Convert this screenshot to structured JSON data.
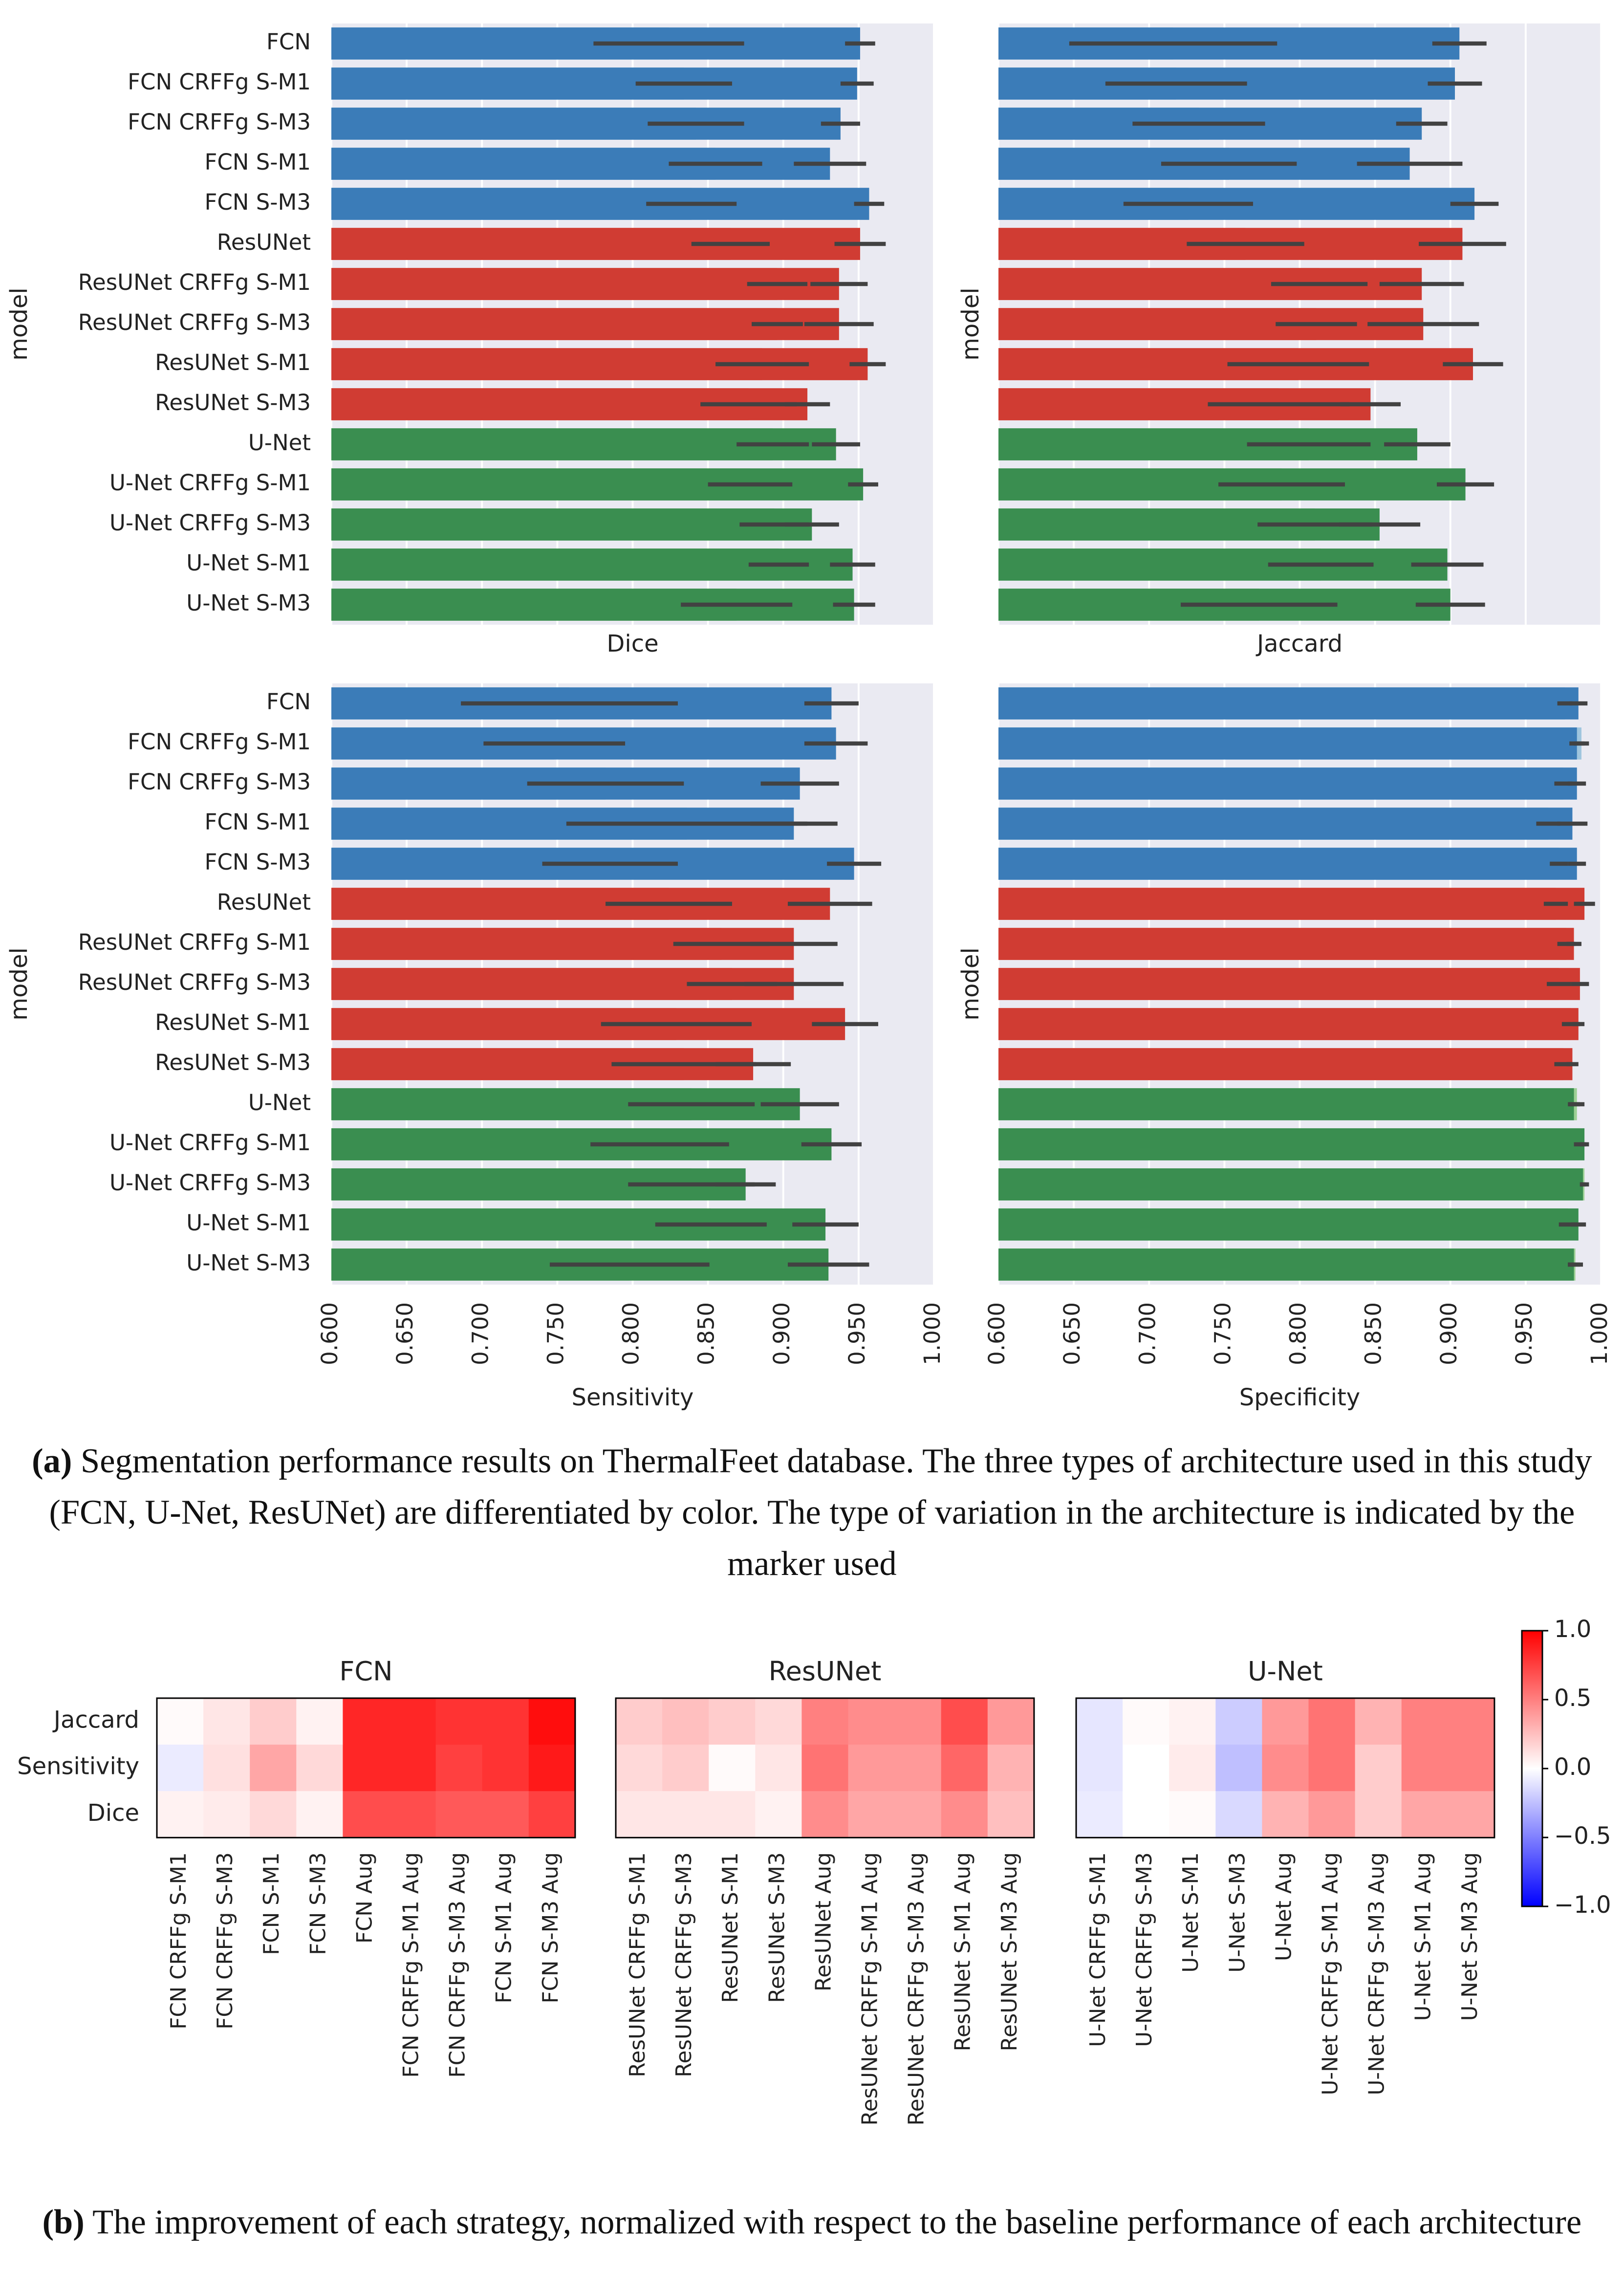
{
  "chart_data": [
    {
      "type": "bar",
      "orientation": "horizontal",
      "ylabel": "model",
      "xlabel": "Dice",
      "xlim": [
        0.6,
        1.0
      ],
      "grid": true,
      "categories": [
        "FCN",
        "FCN CRFFg S-M1",
        "FCN CRFFg S-M3",
        "FCN S-M1",
        "FCN S-M3",
        "ResUNet",
        "ResUNet CRFFg S-M1",
        "ResUNet CRFFg S-M3",
        "ResUNet S-M1",
        "ResUNet S-M3",
        "U-Net",
        "U-Net CRFFg S-M1",
        "U-Net CRFFg S-M3",
        "U-Net S-M1",
        "U-Net S-M3"
      ],
      "series": [
        {
          "colors": [
            "#9fc5de",
            "#9fc5de",
            "#9fc5de",
            "#9fc5de",
            "#9fc5de",
            "#ee967b",
            "#ee967b",
            "#ee967b",
            "#ee967b",
            "#ee967b",
            "#9dd095",
            "#9dd095",
            "#9dd095",
            "#9dd095",
            "#9dd095"
          ],
          "values": [
            0.824,
            0.834,
            0.842,
            0.855,
            0.839,
            0.865,
            0.896,
            0.896,
            0.886,
            0.877,
            0.893,
            0.878,
            0.894,
            0.897,
            0.869
          ],
          "errors": [
            0.05,
            0.032,
            0.032,
            0.031,
            0.03,
            0.026,
            0.02,
            0.017,
            0.031,
            0.032,
            0.024,
            0.028,
            0.023,
            0.02,
            0.037
          ]
        },
        {
          "colors": [
            "#3b7cb8",
            "#3b7cb8",
            "#3b7cb8",
            "#3b7cb8",
            "#3b7cb8",
            "#d03c33",
            "#d03c33",
            "#d03c33",
            "#d03c33",
            "#d03c33",
            "#3a8e50",
            "#3a8e50",
            "#3a8e50",
            "#3a8e50",
            "#3a8e50"
          ],
          "values": [
            0.951,
            0.949,
            0.938,
            0.931,
            0.957,
            0.951,
            0.937,
            0.937,
            0.956,
            0.916,
            0.935,
            0.953,
            0.919,
            0.946,
            0.947
          ],
          "errors": [
            0.01,
            0.011,
            0.013,
            0.024,
            0.01,
            0.017,
            0.019,
            0.023,
            0.012,
            0.015,
            0.016,
            0.01,
            0.018,
            0.015,
            0.014
          ]
        }
      ]
    },
    {
      "type": "bar",
      "orientation": "horizontal",
      "ylabel": "model",
      "xlabel": "Jaccard",
      "xlim": [
        0.6,
        1.0
      ],
      "grid": true,
      "series": [
        {
          "colors": [
            "#9fc5de",
            "#9fc5de",
            "#9fc5de",
            "#9fc5de",
            "#9fc5de",
            "#ee967b",
            "#ee967b",
            "#ee967b",
            "#ee967b",
            "#ee967b",
            "#9dd095",
            "#9dd095",
            "#9dd095",
            "#9dd095",
            "#9dd095"
          ],
          "values": [
            0.716,
            0.718,
            0.733,
            0.753,
            0.726,
            0.764,
            0.813,
            0.811,
            0.799,
            0.786,
            0.806,
            0.788,
            0.81,
            0.814,
            0.773
          ],
          "errors": [
            0.069,
            0.047,
            0.044,
            0.045,
            0.043,
            0.039,
            0.032,
            0.027,
            0.047,
            0.047,
            0.041,
            0.042,
            0.038,
            0.035,
            0.052
          ]
        },
        {
          "colors": [
            "#3b7cb8",
            "#3b7cb8",
            "#3b7cb8",
            "#3b7cb8",
            "#3b7cb8",
            "#d03c33",
            "#d03c33",
            "#d03c33",
            "#d03c33",
            "#d03c33",
            "#3a8e50",
            "#3a8e50",
            "#3a8e50",
            "#3a8e50",
            "#3a8e50"
          ],
          "values": [
            0.906,
            0.903,
            0.881,
            0.873,
            0.916,
            0.908,
            0.881,
            0.882,
            0.915,
            0.847,
            0.878,
            0.91,
            0.853,
            0.898,
            0.9
          ],
          "errors": [
            0.018,
            0.018,
            0.017,
            0.035,
            0.016,
            0.029,
            0.028,
            0.037,
            0.02,
            0.02,
            0.022,
            0.019,
            0.027,
            0.024,
            0.023
          ]
        }
      ]
    },
    {
      "type": "bar",
      "orientation": "horizontal",
      "ylabel": "model",
      "xlabel": "Sensitivity",
      "xlim": [
        0.6,
        1.0
      ],
      "grid": true,
      "xticks": [
        {
          "value": 0.6,
          "label": "0.600"
        },
        {
          "value": 0.65,
          "label": "0.650"
        },
        {
          "value": 0.7,
          "label": "0.700"
        },
        {
          "value": 0.75,
          "label": "0.750"
        },
        {
          "value": 0.8,
          "label": "0.800"
        },
        {
          "value": 0.85,
          "label": "0.850"
        },
        {
          "value": 0.9,
          "label": "0.900"
        },
        {
          "value": 0.95,
          "label": "0.950"
        },
        {
          "value": 1.0,
          "label": "1.000"
        }
      ],
      "categories": [
        "FCN",
        "FCN CRFFg S-M1",
        "FCN CRFFg S-M3",
        "FCN S-M1",
        "FCN S-M3",
        "ResUNet",
        "ResUNet CRFFg S-M1",
        "ResUNet CRFFg S-M3",
        "ResUNet S-M1",
        "ResUNet S-M3",
        "U-Net",
        "U-Net CRFFg S-M1",
        "U-Net CRFFg S-M3",
        "U-Net S-M1",
        "U-Net S-M3"
      ],
      "series": [
        {
          "colors": [
            "#9fc5de",
            "#9fc5de",
            "#9fc5de",
            "#9fc5de",
            "#9fc5de",
            "#ee967b",
            "#ee967b",
            "#ee967b",
            "#ee967b",
            "#ee967b",
            "#9dd095",
            "#9dd095",
            "#9dd095",
            "#9dd095",
            "#9dd095"
          ],
          "values": [
            0.758,
            0.748,
            0.782,
            0.836,
            0.785,
            0.824,
            0.859,
            0.866,
            0.829,
            0.834,
            0.839,
            0.818,
            0.839,
            0.852,
            0.798
          ],
          "errors": [
            0.072,
            0.047,
            0.052,
            0.08,
            0.045,
            0.042,
            0.032,
            0.03,
            0.05,
            0.048,
            0.042,
            0.046,
            0.042,
            0.037,
            0.053
          ]
        },
        {
          "colors": [
            "#3b7cb8",
            "#3b7cb8",
            "#3b7cb8",
            "#3b7cb8",
            "#3b7cb8",
            "#d03c33",
            "#d03c33",
            "#d03c33",
            "#d03c33",
            "#d03c33",
            "#3a8e50",
            "#3a8e50",
            "#3a8e50",
            "#3a8e50",
            "#3a8e50"
          ],
          "values": [
            0.932,
            0.935,
            0.911,
            0.907,
            0.947,
            0.931,
            0.907,
            0.907,
            0.941,
            0.88,
            0.911,
            0.932,
            0.875,
            0.928,
            0.93
          ],
          "errors": [
            0.018,
            0.021,
            0.026,
            0.029,
            0.018,
            0.028,
            0.029,
            0.033,
            0.022,
            0.025,
            0.026,
            0.02,
            0.02,
            0.022,
            0.027
          ]
        }
      ]
    },
    {
      "type": "bar",
      "orientation": "horizontal",
      "ylabel": "model",
      "xlabel": "Specificity",
      "xlim": [
        0.6,
        1.0
      ],
      "grid": true,
      "xticks": [
        {
          "value": 0.6,
          "label": "0.600"
        },
        {
          "value": 0.65,
          "label": "0.650"
        },
        {
          "value": 0.7,
          "label": "0.700"
        },
        {
          "value": 0.75,
          "label": "0.750"
        },
        {
          "value": 0.8,
          "label": "0.800"
        },
        {
          "value": 0.85,
          "label": "0.850"
        },
        {
          "value": 0.9,
          "label": "0.900"
        },
        {
          "value": 0.95,
          "label": "0.950"
        },
        {
          "value": 1.0,
          "label": "1.000"
        }
      ],
      "series": [
        {
          "colors": [
            "#9fc5de",
            "#9fc5de",
            "#9fc5de",
            "#9fc5de",
            "#9fc5de",
            "#ee967b",
            "#ee967b",
            "#ee967b",
            "#ee967b",
            "#ee967b",
            "#9dd095",
            "#9dd095",
            "#9dd095",
            "#9dd095",
            "#9dd095"
          ],
          "values": [
            0.976,
            0.987,
            0.975,
            0.965,
            0.972,
            0.97,
            0.977,
            0.972,
            0.98,
            0.975,
            0.984,
            0.986,
            0.989,
            0.978,
            0.983
          ],
          "errors": [
            0.005,
            0.005,
            0.006,
            0.008,
            0.006,
            0.008,
            0.006,
            0.008,
            0.006,
            0.006,
            0.005,
            0.004,
            0.003,
            0.006,
            0.005
          ]
        },
        {
          "colors": [
            "#3b7cb8",
            "#3b7cb8",
            "#3b7cb8",
            "#3b7cb8",
            "#3b7cb8",
            "#d03c33",
            "#d03c33",
            "#d03c33",
            "#d03c33",
            "#d03c33",
            "#3a8e50",
            "#3a8e50",
            "#3a8e50",
            "#3a8e50",
            "#3a8e50"
          ],
          "values": [
            0.985,
            0.984,
            0.984,
            0.981,
            0.984,
            0.989,
            0.982,
            0.986,
            0.985,
            0.981,
            0.982,
            0.989,
            0.988,
            0.985,
            0.982
          ],
          "errors": [
            0.006,
            0.005,
            0.006,
            0.01,
            0.006,
            0.007,
            0.005,
            0.006,
            0.004,
            0.004,
            0.004,
            0.003,
            0.002,
            0.005,
            0.004
          ]
        }
      ]
    },
    {
      "type": "heatmap",
      "title": "FCN",
      "rows": [
        "Jaccard",
        "Sensitivity",
        "Dice"
      ],
      "columns": [
        "FCN CRFFg S-M1",
        "FCN CRFFg S-M3",
        "FCN S-M1",
        "FCN S-M3",
        "FCN Aug",
        "FCN CRFFg S-M1 Aug",
        "FCN CRFFg S-M3 Aug",
        "FCN S-M1 Aug",
        "FCN S-M3 Aug"
      ],
      "values": [
        [
          0.02,
          0.1,
          0.2,
          0.05,
          0.85,
          0.85,
          0.8,
          0.8,
          0.95
        ],
        [
          -0.08,
          0.12,
          0.35,
          0.15,
          0.85,
          0.85,
          0.75,
          0.8,
          0.9
        ],
        [
          0.05,
          0.08,
          0.15,
          0.05,
          0.7,
          0.7,
          0.65,
          0.65,
          0.75
        ]
      ]
    },
    {
      "type": "heatmap",
      "title": "ResUNet",
      "columns": [
        "ResUNet CRFFg S-M1",
        "ResUNet CRFFg S-M3",
        "ResUNet S-M1",
        "ResUNet S-M3",
        "ResUNet Aug",
        "ResUNet CRFFg S-M1 Aug",
        "ResUNet CRFFg S-M3 Aug",
        "ResUNet S-M1 Aug",
        "ResUNet S-M3 Aug"
      ],
      "values": [
        [
          0.2,
          0.25,
          0.2,
          0.15,
          0.5,
          0.45,
          0.45,
          0.7,
          0.4
        ],
        [
          0.15,
          0.2,
          0.02,
          0.1,
          0.55,
          0.4,
          0.4,
          0.6,
          0.3
        ],
        [
          0.1,
          0.1,
          0.1,
          0.05,
          0.45,
          0.35,
          0.35,
          0.45,
          0.25
        ]
      ]
    },
    {
      "type": "heatmap",
      "title": "U-Net",
      "columns": [
        "U-Net CRFFg S-M1",
        "U-Net CRFFg S-M3",
        "U-Net S-M1",
        "U-Net S-M3",
        "U-Net Aug",
        "U-Net CRFFg S-M1 Aug",
        "U-Net CRFFg S-M3 Aug",
        "U-Net S-M1 Aug",
        "U-Net S-M3 Aug"
      ],
      "values": [
        [
          -0.1,
          0.02,
          0.05,
          -0.2,
          0.4,
          0.55,
          0.3,
          0.5,
          0.5
        ],
        [
          -0.1,
          0.0,
          0.08,
          -0.25,
          0.45,
          0.55,
          0.2,
          0.5,
          0.5
        ],
        [
          -0.08,
          0.0,
          0.02,
          -0.15,
          0.3,
          0.4,
          0.2,
          0.35,
          0.35
        ]
      ],
      "clim": [
        -1,
        1
      ],
      "cticks": [
        {
          "value": 1,
          "label": "1.0"
        },
        {
          "value": 0.5,
          "label": "0.5"
        },
        {
          "value": 0,
          "label": "0.0"
        },
        {
          "value": -0.5,
          "label": "−0.5"
        },
        {
          "value": -1,
          "label": "−1.0"
        }
      ]
    }
  ],
  "captions": {
    "a": {
      "label": "(a)",
      "text": "Segmentation performance results on ThermalFeet database. The three types of architecture used in this study (FCN, U-Net, ResUNet) are differentiated by color. The type of variation in the architecture is indicated by the marker used"
    },
    "b": {
      "label": "(b)",
      "text": "The improvement of each strategy, normalized with respect to the baseline performance of each architecture"
    }
  }
}
